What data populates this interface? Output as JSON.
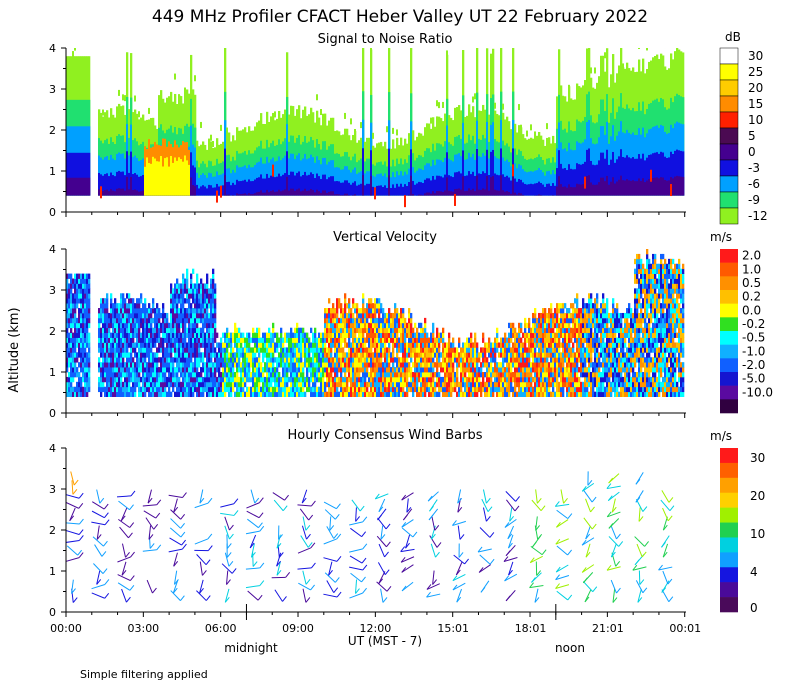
{
  "header": {
    "title": "449 MHz Profiler CFACT Heber Valley UT 22 February 2022",
    "ylabel": "Altitude (km)",
    "xlabel": "UT  (MST - 7)",
    "midnight": "midnight",
    "noon": "noon",
    "footnote": "Simple filtering applied"
  },
  "chart_data": [
    {
      "type": "heatmap",
      "title": "Signal to Noise Ratio",
      "xlabel": "UT  (MST - 7)",
      "ylabel": "Altitude (km)",
      "ylim": [
        0,
        4
      ],
      "y_ticks": [
        "0",
        "1",
        "2",
        "3",
        "4"
      ],
      "x_ticks": [
        "00:00",
        "03:00",
        "06:00",
        "09:00",
        "12:00",
        "15:01",
        "18:01",
        "21:01",
        "00:01"
      ],
      "colorbar_unit": "dB",
      "colorbar_labels": [
        "30",
        "25",
        "20",
        "15",
        "10",
        "5",
        "0",
        "-3",
        "-6",
        "-9",
        "-12"
      ],
      "colorbar_colors": [
        "#ffffff",
        "#ffff00",
        "#ffcc00",
        "#ff8c00",
        "#ff2000",
        "#4b0a52",
        "#44008f",
        "#1010e0",
        "#00a0ff",
        "#20e070",
        "#90f020"
      ]
    },
    {
      "type": "heatmap",
      "title": "Vertical Velocity",
      "ylim": [
        0,
        4
      ],
      "y_ticks": [
        "0",
        "1",
        "2",
        "3",
        "4"
      ],
      "colorbar_unit": "m/s",
      "colorbar_labels": [
        "2.0",
        "1.0",
        "0.5",
        "0.2",
        "0.0",
        "-0.2",
        "-0.5",
        "-1.0",
        "-2.0",
        "-5.0",
        "-10.0"
      ],
      "colorbar_colors": [
        "#ff1a1a",
        "#ff5a00",
        "#ff9000",
        "#ffc000",
        "#ffff00",
        "#30e020",
        "#00ffff",
        "#10b0ff",
        "#1060ff",
        "#1515d0",
        "#5a0aa0",
        "#300040"
      ]
    },
    {
      "type": "scatter",
      "title": "Hourly Consensus Wind Barbs",
      "ylim": [
        0,
        4
      ],
      "y_ticks": [
        "0",
        "1",
        "2",
        "3",
        "4"
      ],
      "colorbar_unit": "m/s",
      "colorbar_labels": [
        "30",
        "20",
        "10",
        "4",
        "0"
      ],
      "colorbar_colors": [
        "#ff1a1a",
        "#ff6000",
        "#ffa000",
        "#ffd000",
        "#a0f000",
        "#20d050",
        "#00d0e0",
        "#10a0ff",
        "#1515e0",
        "#4a0a9a",
        "#4a0a5a"
      ],
      "hours_utc": [
        0,
        1,
        2,
        3,
        4,
        5,
        6,
        7,
        8,
        9,
        10,
        11,
        12,
        13,
        14,
        15,
        16,
        17,
        18,
        19,
        20,
        21,
        22,
        23
      ]
    }
  ]
}
